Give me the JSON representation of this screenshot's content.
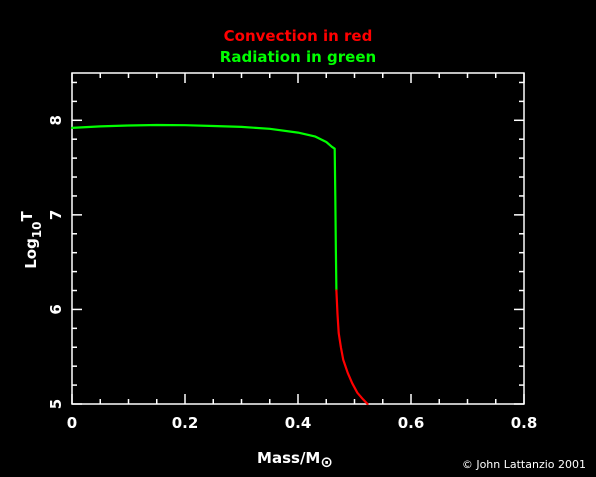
{
  "colors": {
    "background": "#000000",
    "axes": "#ffffff",
    "convection": "#ff0000",
    "radiation": "#00ff00"
  },
  "legend_lines": {
    "convection": "Convection in red",
    "radiation": "Radiation in green"
  },
  "credit": "© John Lattanzio 2001",
  "chart_data": {
    "type": "line",
    "title": "",
    "xlabel": "Mass/M",
    "xlabel_symbol": "⊙",
    "ylabel": "Log",
    "ylabel_sub": "10",
    "ylabel_tail": "T",
    "xlim": [
      0,
      0.8
    ],
    "ylim": [
      5,
      8.5
    ],
    "x_ticks": [
      0,
      0.2,
      0.4,
      0.6,
      0.8
    ],
    "x_tick_labels": [
      "0",
      "0.2",
      "0.4",
      "0.6",
      "0.8"
    ],
    "y_ticks": [
      5,
      6,
      7,
      8
    ],
    "y_tick_labels": [
      "5",
      "6",
      "7",
      "8"
    ],
    "grid": false,
    "series": [
      {
        "name": "Radiation",
        "color": "#00ff00",
        "x": [
          0.0,
          0.05,
          0.1,
          0.15,
          0.2,
          0.25,
          0.3,
          0.35,
          0.4,
          0.43,
          0.45,
          0.46,
          0.465,
          0.466,
          0.467,
          0.468
        ],
        "y": [
          7.92,
          7.935,
          7.945,
          7.95,
          7.948,
          7.94,
          7.93,
          7.91,
          7.87,
          7.83,
          7.77,
          7.72,
          7.7,
          7.2,
          6.6,
          6.2
        ]
      },
      {
        "name": "Convection",
        "color": "#ff0000",
        "x": [
          0.468,
          0.47,
          0.472,
          0.476,
          0.48,
          0.488,
          0.496,
          0.505,
          0.515,
          0.523
        ],
        "y": [
          6.2,
          5.95,
          5.75,
          5.6,
          5.47,
          5.33,
          5.22,
          5.12,
          5.05,
          5.0
        ]
      }
    ]
  }
}
